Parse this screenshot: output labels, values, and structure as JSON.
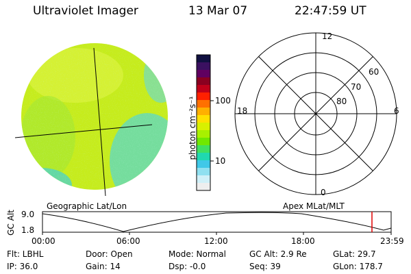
{
  "header": {
    "title": "Ultraviolet Imager",
    "date": "13 Mar 07",
    "time": "22:47:59 UT"
  },
  "colorbar": {
    "unit_label": "photon cm⁻²s⁻¹",
    "tick_labels": [
      "100",
      "10"
    ],
    "colors": [
      "#101040",
      "#3a1060",
      "#600060",
      "#8a0020",
      "#c0001a",
      "#ff2000",
      "#ff7000",
      "#ffb000",
      "#ffe000",
      "#d8f000",
      "#a8f000",
      "#70e800",
      "#40e060",
      "#20d8b0",
      "#40c8e8",
      "#90e0f0",
      "#d0f0f8",
      "#eeeeee"
    ]
  },
  "polar_plot": {
    "clock_labels": [
      "12",
      "18",
      "6",
      "0"
    ],
    "lat_labels": [
      "60",
      "70",
      "80"
    ]
  },
  "timeline": {
    "left_label": "Geographic Lat/Lon",
    "right_label": "Apex MLat/MLT",
    "y_axis_label": "GC Alt",
    "y_ticks": [
      "9.0",
      "1.8"
    ],
    "x_ticks": [
      "00:00",
      "06:00",
      "12:00",
      "18:00",
      "23:59"
    ],
    "current_marker_color": "#e00000"
  },
  "status": {
    "filter": "Flt: LBHL",
    "ip": "IP: 36.0",
    "door": "Door: Open",
    "gain": "Gain: 14",
    "mode": "Mode: Normal",
    "dsp": "Dsp:   -0.0",
    "gc_alt": "GC Alt: 2.9 Re",
    "seq": "Seq: 39",
    "glat": "GLat:  29.7",
    "glon": "GLon: 178.7"
  }
}
